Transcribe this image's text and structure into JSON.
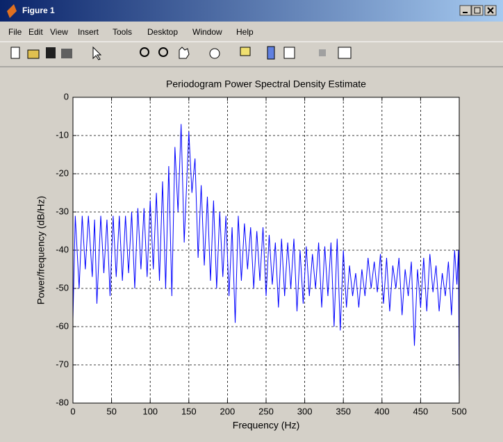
{
  "window": {
    "title": "Figure 1",
    "menu": [
      "File",
      "Edit",
      "View",
      "Insert",
      "Tools",
      "Desktop",
      "Window",
      "Help"
    ]
  },
  "chart_data": {
    "type": "line",
    "title": "Periodogram Power Spectral Density Estimate",
    "x_label": "Frequency (Hz)",
    "y_label": "Power/frequency (dB/Hz)",
    "xlim": [
      0,
      500
    ],
    "xticks": [
      0,
      50,
      100,
      150,
      200,
      250,
      300,
      350,
      400,
      450,
      500
    ],
    "ylim": [
      -80,
      0
    ],
    "yticks": [
      -80,
      -70,
      -60,
      -50,
      -40,
      -30,
      -20,
      -10,
      0
    ],
    "grid": true,
    "color": "#0000ff",
    "x": [
      0,
      3,
      8,
      12,
      16,
      20,
      25,
      28,
      31,
      36,
      40,
      44,
      48,
      52,
      56,
      60,
      64,
      68,
      72,
      76,
      80,
      84,
      88,
      92,
      96,
      100,
      104,
      108,
      112,
      116,
      120,
      124,
      128,
      132,
      136,
      140,
      144,
      150,
      154,
      158,
      162,
      166,
      170,
      174,
      178,
      182,
      186,
      190,
      194,
      198,
      202,
      206,
      210,
      214,
      218,
      222,
      226,
      230,
      234,
      238,
      242,
      246,
      250,
      254,
      258,
      262,
      266,
      270,
      274,
      278,
      282,
      286,
      290,
      294,
      298,
      302,
      306,
      310,
      314,
      318,
      322,
      326,
      330,
      334,
      338,
      342,
      346,
      350,
      354,
      358,
      362,
      366,
      370,
      374,
      378,
      382,
      386,
      390,
      394,
      398,
      402,
      406,
      410,
      414,
      418,
      422,
      426,
      430,
      434,
      438,
      442,
      446,
      450,
      454,
      458,
      462,
      466,
      470,
      474,
      478,
      482,
      486,
      490,
      494,
      497,
      499,
      500
    ],
    "values": [
      -58,
      -31,
      -50,
      -31,
      -45,
      -31,
      -47,
      -32,
      -54,
      -31,
      -46,
      -32,
      -52,
      -31,
      -47,
      -31,
      -48,
      -31,
      -46,
      -30,
      -50,
      -29,
      -45,
      -29,
      -47,
      -27,
      -45,
      -25,
      -48,
      -22,
      -50,
      -18,
      -52,
      -13,
      -30,
      -7,
      -38,
      -9,
      -25,
      -16,
      -42,
      -23,
      -44,
      -26,
      -48,
      -27,
      -50,
      -30,
      -47,
      -31,
      -52,
      -34,
      -59,
      -31,
      -48,
      -33,
      -45,
      -34,
      -50,
      -35,
      -48,
      -34,
      -52,
      -36,
      -49,
      -38,
      -55,
      -37,
      -52,
      -38,
      -50,
      -37,
      -56,
      -40,
      -54,
      -39,
      -52,
      -41,
      -50,
      -38,
      -55,
      -39,
      -52,
      -38,
      -60,
      -37,
      -61,
      -40,
      -55,
      -44,
      -52,
      -46,
      -55,
      -45,
      -52,
      -42,
      -50,
      -43,
      -51,
      -41,
      -54,
      -42,
      -56,
      -44,
      -50,
      -42,
      -57,
      -45,
      -52,
      -43,
      -65,
      -45,
      -55,
      -42,
      -56,
      -41,
      -51,
      -44,
      -56,
      -46,
      -52,
      -43,
      -57,
      -40,
      -49,
      -40,
      -76
    ]
  }
}
